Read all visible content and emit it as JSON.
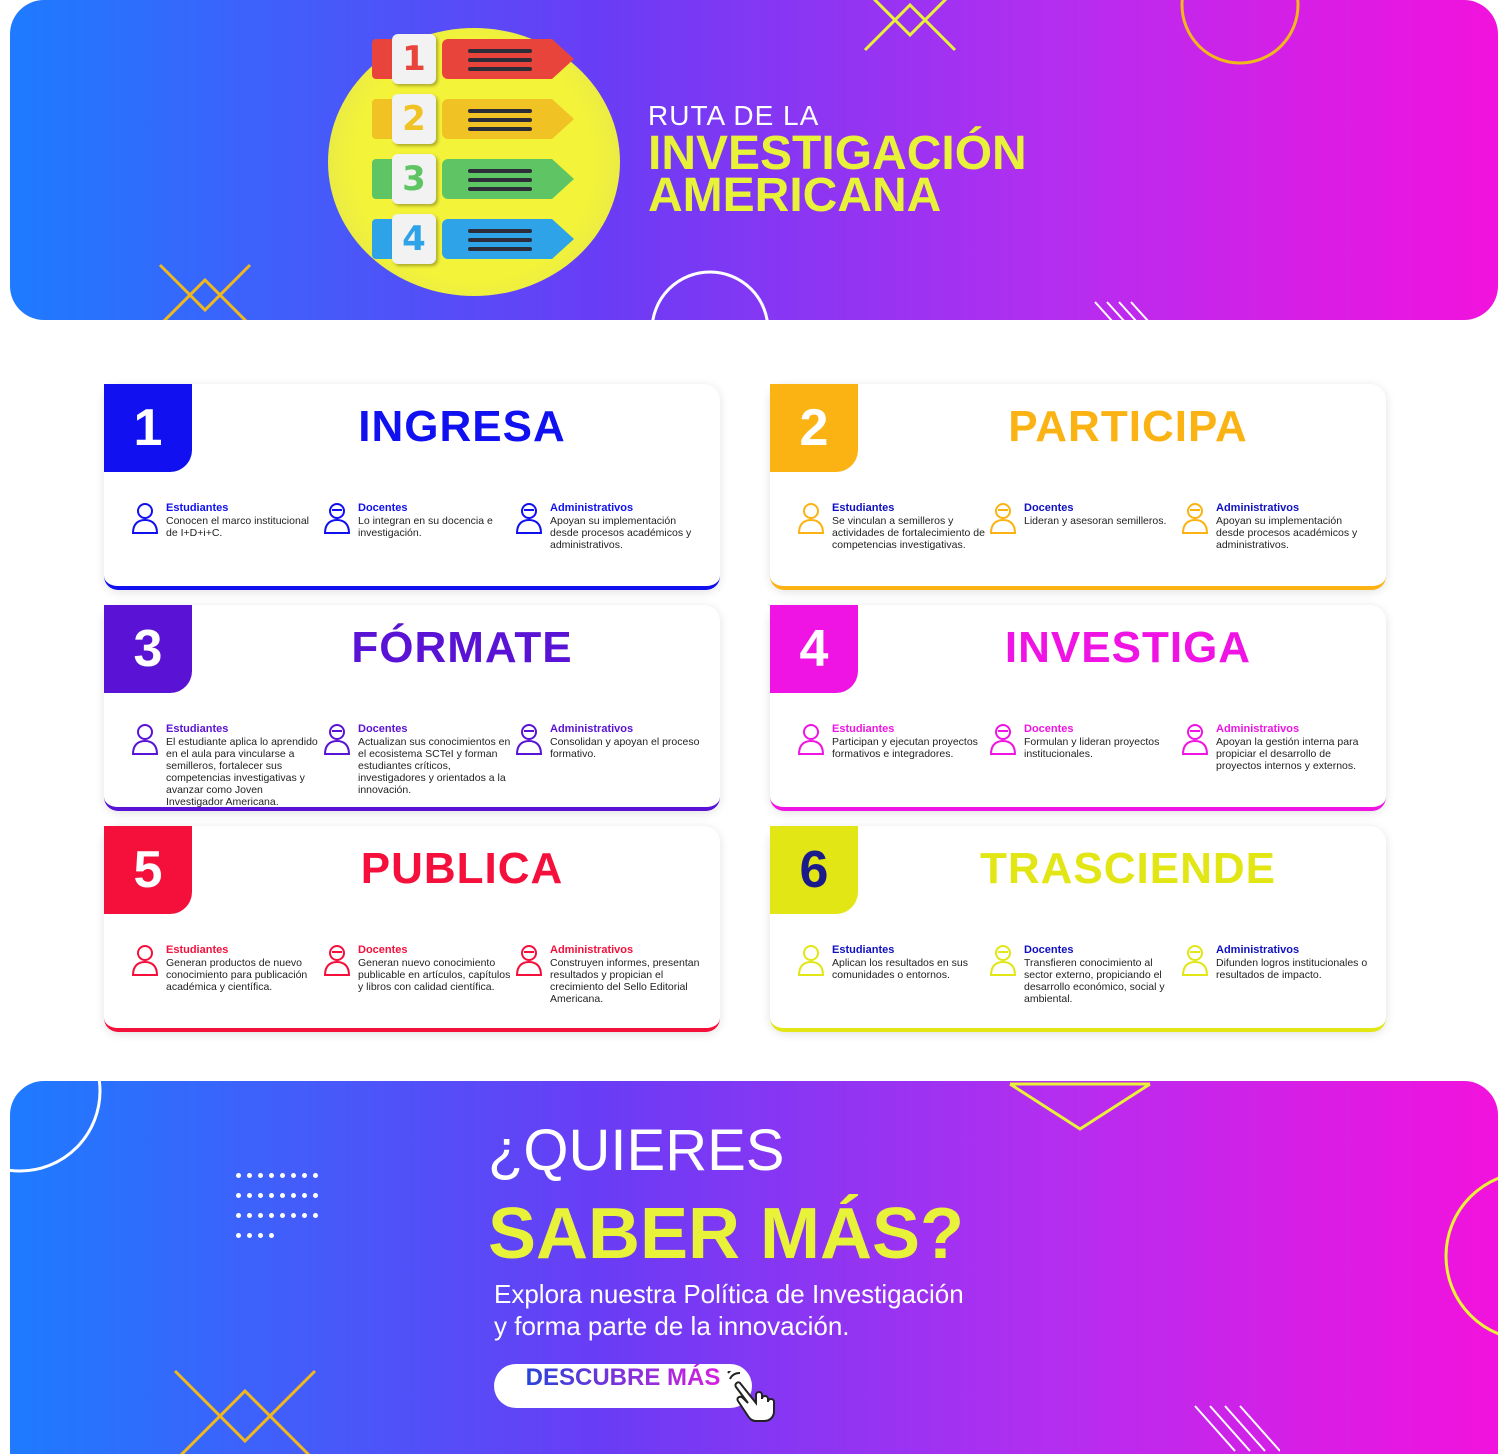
{
  "header": {
    "title_line1": "RUTA DE LA",
    "title_line2": "INVESTIGACIÓN",
    "title_line3": "AMERICANA",
    "steps_graphic": [
      {
        "num": "1",
        "color": "#e8443c"
      },
      {
        "num": "2",
        "color": "#f0c224"
      },
      {
        "num": "3",
        "color": "#5fc564"
      },
      {
        "num": "4",
        "color": "#2ea3e8"
      }
    ]
  },
  "cards": [
    {
      "num": "1",
      "title": "INGRESA",
      "color": "#1010f0",
      "roles": [
        {
          "who": "Estudiantes",
          "desc": "Conocen el marco institucional de I+D+i+C."
        },
        {
          "who": "Docentes",
          "desc": "Lo integran en su docencia e investigación."
        },
        {
          "who": "Administrativos",
          "desc": "Apoyan su implementación desde procesos académicos y administrativos."
        }
      ]
    },
    {
      "num": "2",
      "title": "PARTICIPA",
      "color": "#fbb314",
      "roles": [
        {
          "who": "Estudiantes",
          "desc": "Se vinculan a semilleros y actividades de fortalecimiento de competencias investigativas."
        },
        {
          "who": "Docentes",
          "desc": "Lideran y asesoran semilleros."
        },
        {
          "who": "Administrativos",
          "desc": "Apoyan su implementación desde procesos académicos y administrativos."
        }
      ]
    },
    {
      "num": "3",
      "title": "FÓRMATE",
      "color": "#5a12d4",
      "roles": [
        {
          "who": "Estudiantes",
          "desc": "El estudiante aplica lo aprendido en el aula para vincularse a semilleros, fortalecer sus competencias investigativas y avanzar como Joven Investigador Americana."
        },
        {
          "who": "Docentes",
          "desc": "Actualizan sus conocimientos en el ecosistema SCTeI y forman estudiantes críticos, investigadores y orientados a la innovación."
        },
        {
          "who": "Administrativos",
          "desc": "Consolidan y apoyan el proceso formativo."
        }
      ]
    },
    {
      "num": "4",
      "title": "INVESTIGA",
      "color": "#f014e4",
      "roles": [
        {
          "who": "Estudiantes",
          "desc": "Participan y ejecutan proyectos formativos e integradores."
        },
        {
          "who": "Docentes",
          "desc": "Formulan y lideran proyectos institucionales."
        },
        {
          "who": "Administrativos",
          "desc": "Apoyan la gestión interna para propiciar el desarrollo de proyectos internos y externos."
        }
      ]
    },
    {
      "num": "5",
      "title": "PUBLICA",
      "color": "#f5103c",
      "roles": [
        {
          "who": "Estudiantes",
          "desc": "Generan productos de nuevo conocimiento para publicación académica y científica."
        },
        {
          "who": "Docentes",
          "desc": "Generan nuevo conocimiento publicable en artículos, capítulos y libros con calidad científica."
        },
        {
          "who": "Administrativos",
          "desc": "Construyen informes, presentan resultados y propician el crecimiento del Sello Editorial Americana."
        }
      ]
    },
    {
      "num": "6",
      "title": "TRASCIENDE",
      "color": "#e2e614",
      "roles": [
        {
          "who": "Estudiantes",
          "desc": "Aplican los resultados en sus comunidades o entornos."
        },
        {
          "who": "Docentes",
          "desc": "Transfieren conocimiento al sector externo, propiciando el desarrollo económico, social y ambiental."
        },
        {
          "who": "Administrativos",
          "desc": "Difunden logros institucionales o resultados de impacto."
        }
      ]
    }
  ],
  "cta": {
    "question": "¿QUIERES",
    "big": "SABER MÁS?",
    "sub_line1": "Explora nuestra Política de Investigación",
    "sub_line2": "y forma parte de la innovación.",
    "button": "DESCUBRE MÁS",
    "button_icon": "hand-pointer-icon"
  }
}
